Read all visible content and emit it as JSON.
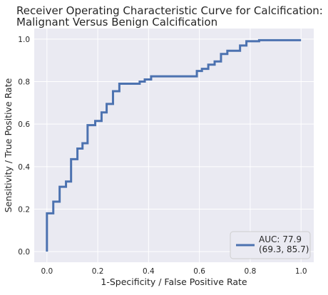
{
  "chart_data": {
    "type": "line",
    "title_lines": [
      "Receiver Operating Characteristic Curve for Calcification:",
      "Malignant Versus Benign Calcification"
    ],
    "xlabel": "1-Specificity / False Positive Rate",
    "ylabel": "Sensitivity / True Positive Rate",
    "xlim": [
      -0.05,
      1.05
    ],
    "ylim": [
      -0.05,
      1.05
    ],
    "x_ticks": [
      0.0,
      0.2,
      0.4,
      0.6,
      0.8,
      1.0
    ],
    "y_ticks": [
      0.0,
      0.2,
      0.4,
      0.6,
      0.8,
      1.0
    ],
    "x_tick_labels": [
      "0.0",
      "0.2",
      "0.4",
      "0.6",
      "0.8",
      "1.0"
    ],
    "y_tick_labels": [
      "0.0",
      "0.2",
      "0.4",
      "0.6",
      "0.8",
      "1.0"
    ],
    "grid": true,
    "legend_position": "lower-right",
    "background_color": "#eaeaf2",
    "line_color": "#4c72b0",
    "series": [
      {
        "name_lines": [
          "AUC: 77.9",
          "(69.3, 85.7)"
        ],
        "points": [
          [
            0.0,
            0.0
          ],
          [
            0.0,
            0.18
          ],
          [
            0.025,
            0.18
          ],
          [
            0.025,
            0.235
          ],
          [
            0.05,
            0.235
          ],
          [
            0.05,
            0.305
          ],
          [
            0.075,
            0.305
          ],
          [
            0.075,
            0.33
          ],
          [
            0.095,
            0.33
          ],
          [
            0.095,
            0.435
          ],
          [
            0.12,
            0.435
          ],
          [
            0.12,
            0.485
          ],
          [
            0.14,
            0.485
          ],
          [
            0.14,
            0.51
          ],
          [
            0.16,
            0.51
          ],
          [
            0.16,
            0.595
          ],
          [
            0.19,
            0.595
          ],
          [
            0.19,
            0.615
          ],
          [
            0.215,
            0.615
          ],
          [
            0.215,
            0.655
          ],
          [
            0.235,
            0.655
          ],
          [
            0.235,
            0.695
          ],
          [
            0.26,
            0.695
          ],
          [
            0.26,
            0.755
          ],
          [
            0.285,
            0.755
          ],
          [
            0.285,
            0.79
          ],
          [
            0.365,
            0.79
          ],
          [
            0.365,
            0.8
          ],
          [
            0.385,
            0.8
          ],
          [
            0.385,
            0.81
          ],
          [
            0.41,
            0.81
          ],
          [
            0.41,
            0.825
          ],
          [
            0.59,
            0.825
          ],
          [
            0.59,
            0.85
          ],
          [
            0.61,
            0.85
          ],
          [
            0.61,
            0.86
          ],
          [
            0.635,
            0.86
          ],
          [
            0.635,
            0.88
          ],
          [
            0.66,
            0.88
          ],
          [
            0.66,
            0.895
          ],
          [
            0.685,
            0.895
          ],
          [
            0.685,
            0.93
          ],
          [
            0.71,
            0.93
          ],
          [
            0.71,
            0.945
          ],
          [
            0.76,
            0.945
          ],
          [
            0.76,
            0.97
          ],
          [
            0.785,
            0.97
          ],
          [
            0.785,
            0.99
          ],
          [
            0.835,
            0.99
          ],
          [
            0.835,
            0.995
          ],
          [
            1.0,
            0.995
          ]
        ]
      }
    ]
  }
}
